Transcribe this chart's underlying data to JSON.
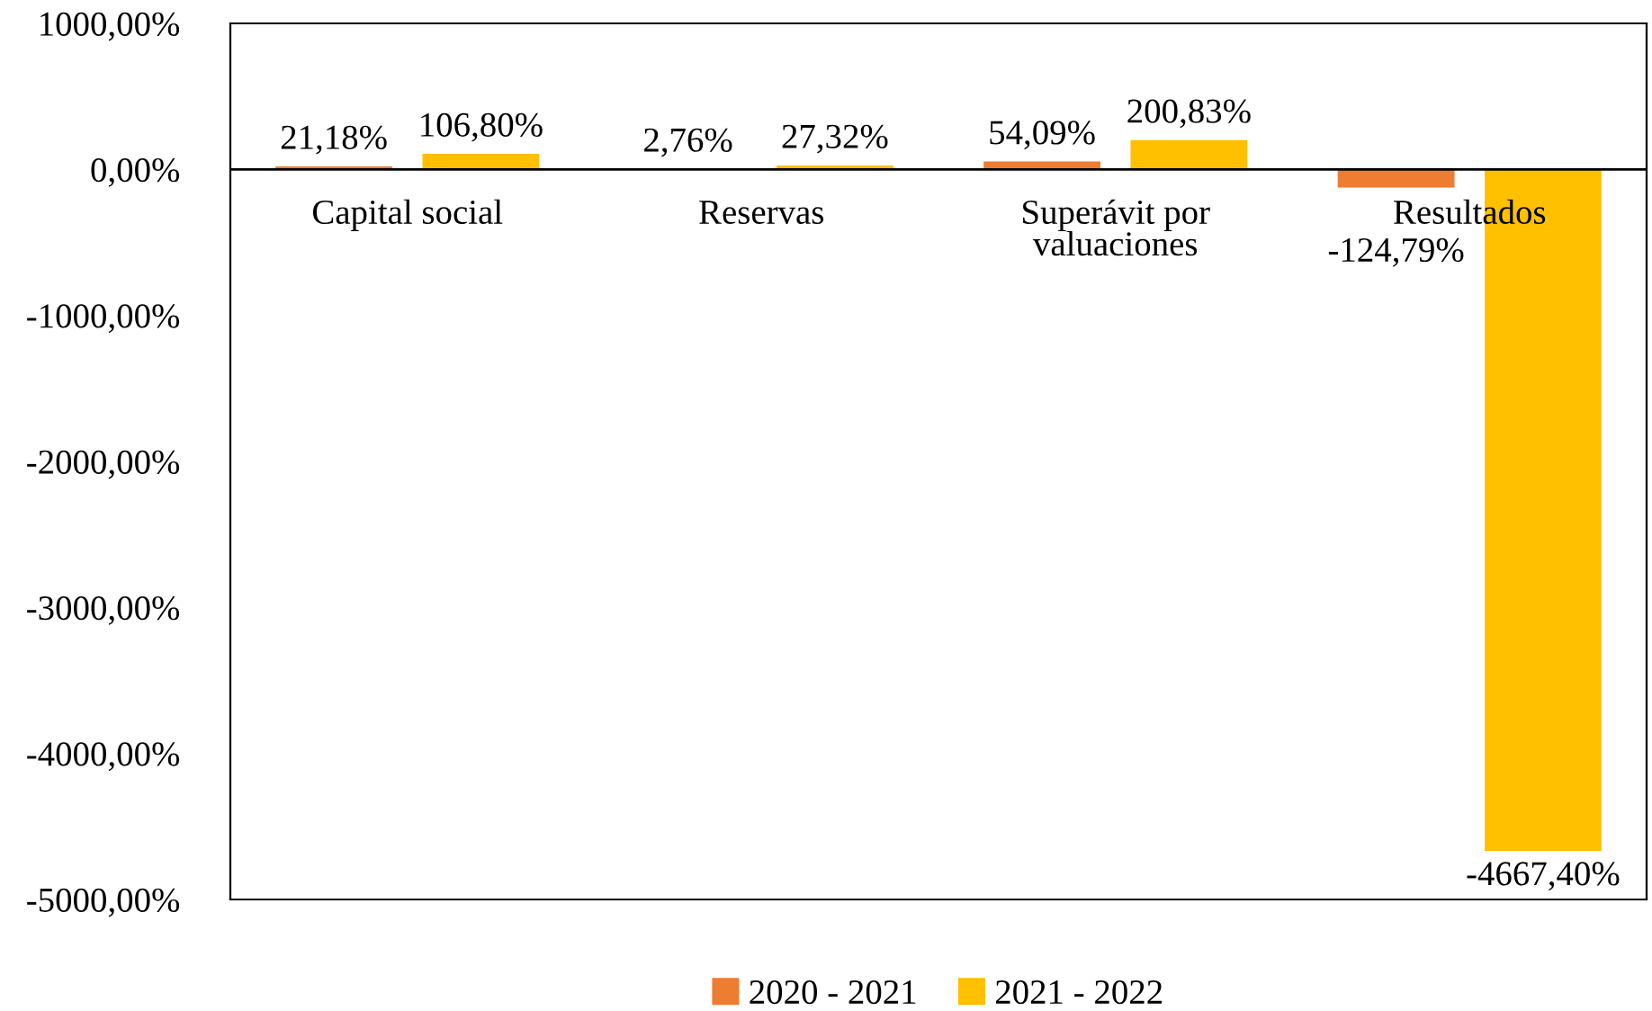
{
  "chart_data": {
    "type": "bar",
    "categories": [
      "Capital social",
      "Reservas",
      "Superávit por\nvaluaciones",
      "Resultados"
    ],
    "series": [
      {
        "name": "2020 - 2021",
        "color": "#ed7d31",
        "values": [
          21.18,
          2.76,
          54.09,
          -124.79
        ],
        "value_labels": [
          "21,18%",
          "2,76%",
          "54,09%",
          "-124,79%"
        ]
      },
      {
        "name": "2021 - 2022",
        "color": "#ffc000",
        "values": [
          106.8,
          27.32,
          200.83,
          -4667.4
        ],
        "value_labels": [
          "106,80%",
          "27,32%",
          "200,83%",
          "-4667,40%"
        ]
      }
    ],
    "ylim": [
      -5000,
      1000
    ],
    "yticks": [
      {
        "value": 1000,
        "label": "1000,00%"
      },
      {
        "value": 0,
        "label": "0,00%"
      },
      {
        "value": -1000,
        "label": "-1000,00%"
      },
      {
        "value": -2000,
        "label": "-2000,00%"
      },
      {
        "value": -3000,
        "label": "-3000,00%"
      },
      {
        "value": -4000,
        "label": "-4000,00%"
      },
      {
        "value": -5000,
        "label": "-5000,00%"
      }
    ],
    "grid": false,
    "legend": "bottom"
  }
}
